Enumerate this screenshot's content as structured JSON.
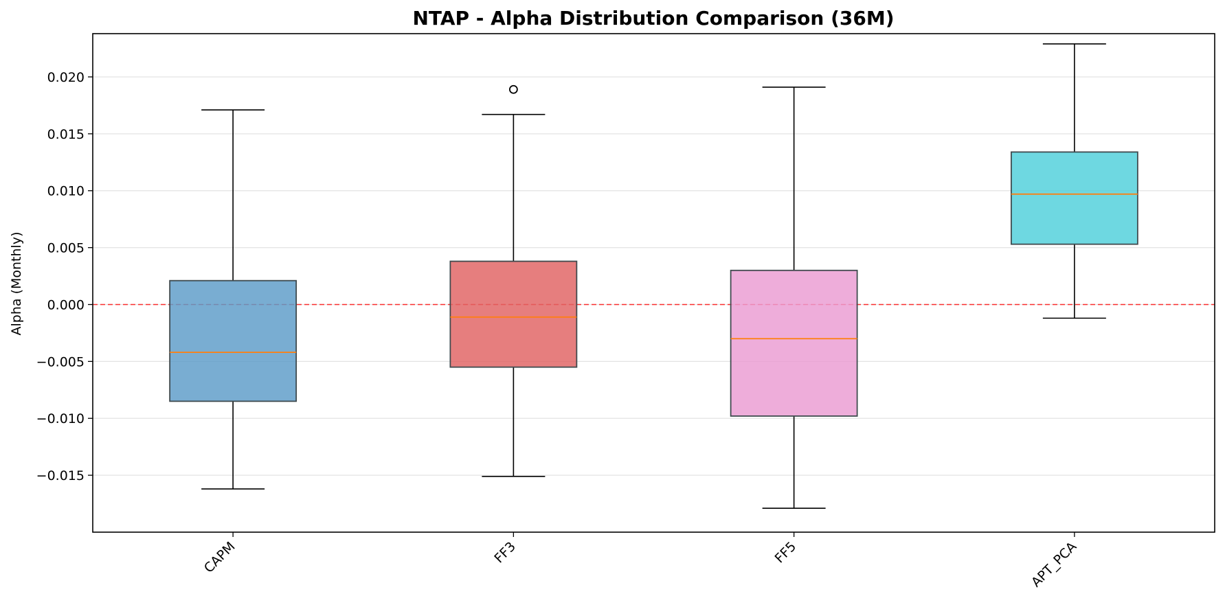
{
  "chart_data": {
    "type": "box",
    "title": "NTAP - Alpha Distribution Comparison (36M)",
    "xlabel": "",
    "ylabel": "Alpha (Monthly)",
    "ylim": [
      -0.02,
      0.0238
    ],
    "yticks": [
      {
        "value": 0.02,
        "label": "0.020"
      },
      {
        "value": 0.015,
        "label": "0.015"
      },
      {
        "value": 0.01,
        "label": "0.010"
      },
      {
        "value": 0.005,
        "label": "0.005"
      },
      {
        "value": 0.0,
        "label": "0.000"
      },
      {
        "value": -0.005,
        "label": "−0.005"
      },
      {
        "value": -0.01,
        "label": "−0.010"
      },
      {
        "value": -0.015,
        "label": "−0.015"
      }
    ],
    "grid": "y",
    "reference_line": {
      "value": 0.0,
      "color": "#ff0000",
      "style": "dashed"
    },
    "categories": [
      "CAPM",
      "FF3",
      "FF5",
      "APT_PCA"
    ],
    "boxes": [
      {
        "category": "CAPM",
        "whisker_low": -0.0162,
        "q1": -0.0085,
        "median": -0.0042,
        "q3": 0.0021,
        "whisker_high": 0.0171,
        "outliers": [],
        "color": "#5b9bc8"
      },
      {
        "category": "FF3",
        "whisker_low": -0.0151,
        "q1": -0.0055,
        "median": -0.0011,
        "q3": 0.0038,
        "whisker_high": 0.0167,
        "outliers": [
          0.0189
        ],
        "color": "#e06262"
      },
      {
        "category": "FF5",
        "whisker_low": -0.0179,
        "q1": -0.0098,
        "median": -0.003,
        "q3": 0.003,
        "whisker_high": 0.0191,
        "outliers": [],
        "color": "#ea9bd2"
      },
      {
        "category": "APT_PCA",
        "whisker_low": -0.0012,
        "q1": 0.0053,
        "median": 0.0097,
        "q3": 0.0134,
        "whisker_high": 0.0229,
        "outliers": [],
        "color": "#4ecfdb"
      }
    ],
    "median_color": "#ff7f0e"
  }
}
